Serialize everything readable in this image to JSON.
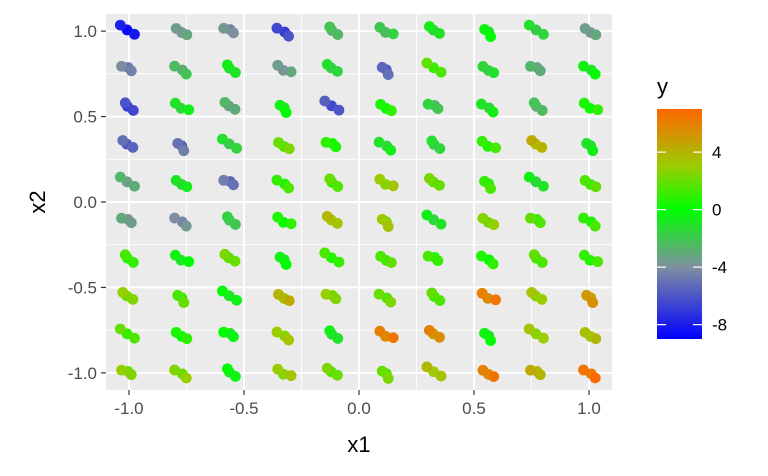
{
  "chart_data": {
    "type": "scatter",
    "xlabel": "x1",
    "ylabel": "x2",
    "xlim": [
      -1.1,
      1.1
    ],
    "ylim": [
      -1.1,
      1.1
    ],
    "x_ticks": [
      -1.0,
      -0.5,
      0.0,
      0.5,
      1.0
    ],
    "x_tick_labels": [
      "-1.0",
      "-0.5",
      "0.0",
      "0.5",
      "1.0"
    ],
    "y_ticks": [
      -1.0,
      -0.5,
      0.0,
      0.5,
      1.0
    ],
    "y_tick_labels": [
      "-1.0",
      "-0.5",
      "0.0",
      "0.5",
      "1.0"
    ],
    "grid": true,
    "legend": {
      "title": "y",
      "placement": "right",
      "type": "colorbar",
      "range": [
        -9,
        7
      ],
      "breaks": [
        4,
        0,
        -4,
        -8
      ],
      "break_labels": [
        "4",
        "0",
        "-4",
        "-8"
      ],
      "colors": [
        {
          "value": -9,
          "color": "#0000ff"
        },
        {
          "value": -4,
          "color": "#7f8fa0"
        },
        {
          "value": 0,
          "color": "#00ff00"
        },
        {
          "value": 3,
          "color": "#9acd00"
        },
        {
          "value": 7,
          "color": "#ff6600"
        }
      ]
    },
    "grid_x": [
      -1.0,
      -0.778,
      -0.556,
      -0.333,
      -0.111,
      0.111,
      0.333,
      0.556,
      0.778,
      1.0
    ],
    "grid_y": [
      1.0,
      0.778,
      0.556,
      0.333,
      0.111,
      -0.111,
      -0.333,
      -0.556,
      -0.778,
      -1.0
    ],
    "y_values": [
      [
        -8.2,
        -3.5,
        -4.0,
        -6.5,
        -2.5,
        -2.0,
        -1.0,
        -0.5,
        -1.5,
        -3.5
      ],
      [
        -4.5,
        -2.5,
        -1.0,
        -3.5,
        -1.5,
        -5.5,
        1.5,
        -1.5,
        -3.0,
        -0.5
      ],
      [
        -6.5,
        -1.0,
        -3.0,
        -0.5,
        -6.0,
        0.5,
        -2.0,
        -1.0,
        -2.5,
        0.5
      ],
      [
        -5.5,
        -5.0,
        -1.5,
        2.0,
        0.5,
        -1.0,
        -1.5,
        1.0,
        4.0,
        -1.0
      ],
      [
        -3.0,
        -1.0,
        -5.0,
        1.0,
        1.5,
        3.0,
        2.0,
        1.0,
        -1.0,
        1.5
      ],
      [
        -3.5,
        -4.0,
        -2.0,
        0.5,
        3.5,
        3.0,
        -1.0,
        2.5,
        1.5,
        1.0
      ],
      [
        1.0,
        -0.5,
        2.0,
        -0.5,
        1.0,
        1.5,
        1.0,
        0.5,
        1.5,
        1.0
      ],
      [
        2.5,
        1.5,
        -0.5,
        4.0,
        2.5,
        2.0,
        1.5,
        6.0,
        3.0,
        5.0
      ],
      [
        1.5,
        0.5,
        -0.5,
        3.0,
        -1.0,
        6.0,
        5.5,
        -0.5,
        3.0,
        3.5
      ],
      [
        2.5,
        2.5,
        -0.5,
        3.0,
        2.0,
        2.0,
        3.5,
        6.0,
        4.0,
        6.5
      ]
    ]
  }
}
